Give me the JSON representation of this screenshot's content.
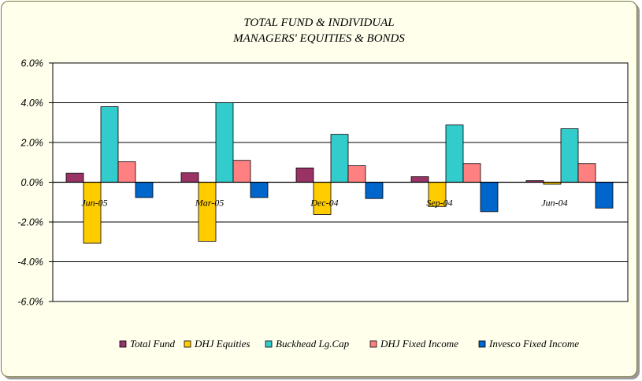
{
  "chart_data": {
    "type": "bar",
    "title": [
      "TOTAL FUND  & INDIVIDUAL",
      "MANAGERS' EQUITIES & BONDS"
    ],
    "xlabel": "",
    "ylabel": "",
    "ylim": [
      -0.06,
      0.06
    ],
    "yticks": [
      0.06,
      0.04,
      0.02,
      0.0,
      -0.02,
      -0.04,
      -0.06
    ],
    "ytick_labels": [
      "6.0%",
      "4.0%",
      "2.0%",
      "0.0%",
      "-2.0%",
      "-4.0%",
      "-6.0%"
    ],
    "grid": true,
    "legend_position": "bottom",
    "categories": [
      "Jun-05",
      "Mar-05",
      "Dec-04",
      "Sep-04",
      "Jun-04"
    ],
    "series": [
      {
        "name": "Total Fund",
        "color": "#993366",
        "values": [
          0.0045,
          0.0048,
          0.0072,
          0.0028,
          0.0008
        ]
      },
      {
        "name": "DHJ Equities",
        "color": "#ffcc00",
        "values": [
          -0.0307,
          -0.0297,
          -0.0162,
          -0.0122,
          -0.001
        ]
      },
      {
        "name": "Buckhead Lg.Cap",
        "color": "#33cccc",
        "values": [
          0.038,
          0.04,
          0.0241,
          0.0288,
          0.0269
        ]
      },
      {
        "name": "DHJ Fixed Income",
        "color": "#ff8080",
        "values": [
          0.0103,
          0.011,
          0.0083,
          0.0094,
          0.0094
        ]
      },
      {
        "name": "Invesco Fixed Income",
        "color": "#0066cc",
        "values": [
          -0.0077,
          -0.0077,
          -0.0082,
          -0.0148,
          -0.013
        ]
      }
    ]
  }
}
